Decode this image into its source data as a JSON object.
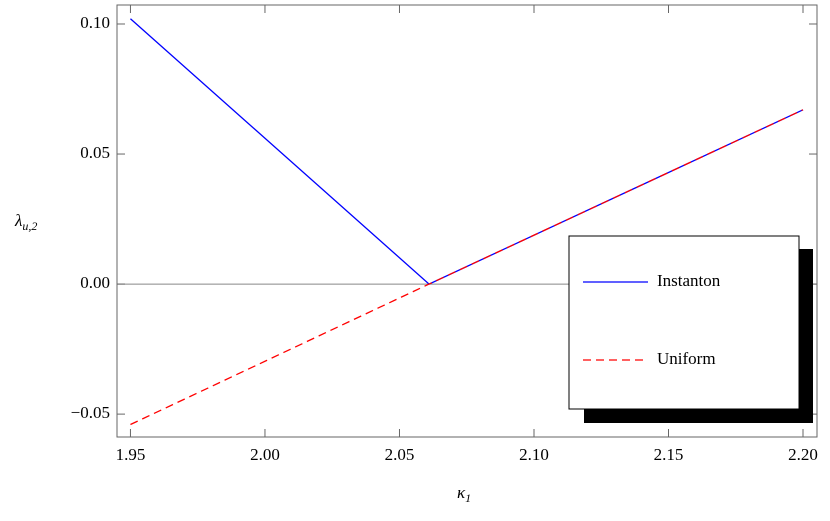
{
  "chart_data": {
    "type": "line",
    "xlabel": {
      "text": "κ",
      "sub": "1"
    },
    "ylabel": {
      "text": "λ",
      "sub": "u,2"
    },
    "xlim": [
      1.945,
      2.2052
    ],
    "ylim": [
      -0.0588,
      0.1073
    ],
    "xticks": [
      {
        "value": 1.95,
        "label": "1.95"
      },
      {
        "value": 2.0,
        "label": "2.00"
      },
      {
        "value": 2.05,
        "label": "2.05"
      },
      {
        "value": 2.1,
        "label": "2.10"
      },
      {
        "value": 2.15,
        "label": "2.15"
      },
      {
        "value": 2.2,
        "label": "2.20"
      }
    ],
    "yticks": [
      {
        "value": -0.05,
        "label": "−0.05"
      },
      {
        "value": 0,
        "label": "0.00"
      },
      {
        "value": 0.05,
        "label": "0.05"
      },
      {
        "value": 0.1,
        "label": "0.10"
      }
    ],
    "series": [
      {
        "name": "Instanton",
        "color": "#0000ff",
        "dash": false,
        "x": [
          1.95,
          2.061,
          2.2
        ],
        "values": [
          0.102,
          0.0,
          0.067
        ]
      },
      {
        "name": "Uniform",
        "color": "#ff0000",
        "dash": true,
        "x": [
          1.95,
          2.061,
          2.2
        ],
        "values": [
          -0.054,
          0.0,
          0.067
        ]
      }
    ]
  }
}
